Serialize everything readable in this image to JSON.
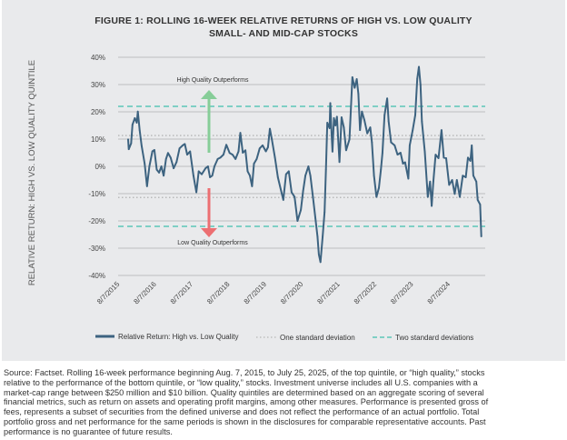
{
  "chart_data": {
    "type": "line",
    "title": "FIGURE 1: ROLLING 16-WEEK RELATIVE RETURNS OF HIGH VS. LOW QUALITY SMALL- AND MID-CAP STOCKS",
    "title_lines": [
      "FIGURE 1: ROLLING 16-WEEK RELATIVE RETURNS OF HIGH VS. LOW QUALITY",
      "SMALL- AND MID-CAP STOCKS"
    ],
    "xlabel": "",
    "ylabel": "RELATIVE RETURN: HIGH VS. LOW QUALITY QUINTILE",
    "ylim": [
      -40,
      40
    ],
    "yticks": [
      40,
      30,
      20,
      10,
      0,
      -10,
      -20,
      -30,
      -40
    ],
    "ytick_labels": [
      "40%",
      "30%",
      "20%",
      "10%",
      "0%",
      "-10%",
      "-20%",
      "-30%",
      "-40%"
    ],
    "xtick_labels": [
      "8/7/2015",
      "8/7/2016",
      "8/7/2017",
      "8/7/2018",
      "8/7/2019",
      "8/7/2020",
      "8/7/2021",
      "8/7/2022",
      "8/7/2023",
      "8/7/2024"
    ],
    "grid": "horizontal",
    "legend_position": "bottom",
    "annotations": {
      "up": "High Quality Outperforms",
      "down": "Low Quality Outperforms"
    },
    "reference_lines": [
      {
        "name": "One standard deviation",
        "values": [
          11.3,
          -11.4
        ],
        "style": "dotted",
        "color": "#a9a9a9"
      },
      {
        "name": "Two standard deviations",
        "values": [
          22,
          -22
        ],
        "style": "dashed",
        "color": "#5cc6b8"
      }
    ],
    "series": [
      {
        "name": "Relative Return: High vs. Low Quality",
        "color": "#3d6380",
        "points": [
          [
            "2015-08-07",
            9.9
          ],
          [
            "2015-08-14",
            6.3
          ],
          [
            "2015-09-07",
            8.4
          ],
          [
            "2015-09-21",
            15.3
          ],
          [
            "2015-10-15",
            17.7
          ],
          [
            "2015-11-04",
            16
          ],
          [
            "2015-11-15",
            20.1
          ],
          [
            "2015-12-04",
            13.3
          ],
          [
            "2015-12-24",
            7.7
          ],
          [
            "2016-01-24",
            1.0
          ],
          [
            "2016-02-18",
            -7.3
          ],
          [
            "2016-03-13",
            0
          ],
          [
            "2016-04-13",
            5.5
          ],
          [
            "2016-05-04",
            6
          ],
          [
            "2016-05-28",
            -1.2
          ],
          [
            "2016-06-21",
            -2.3
          ],
          [
            "2016-07-15",
            0
          ],
          [
            "2016-08-07",
            -3.4
          ],
          [
            "2016-09-01",
            2.7
          ],
          [
            "2016-09-21",
            4.9
          ],
          [
            "2016-10-18",
            3.2
          ],
          [
            "2016-11-18",
            -0.7
          ],
          [
            "2016-12-18",
            1.6
          ],
          [
            "2017-01-18",
            6.6
          ],
          [
            "2017-02-20",
            7.7
          ],
          [
            "2017-03-13",
            8.2
          ],
          [
            "2017-04-07",
            4.3
          ],
          [
            "2017-05-07",
            5.5
          ],
          [
            "2017-06-10",
            -3.4
          ],
          [
            "2017-07-10",
            -9.5
          ],
          [
            "2017-08-04",
            -1.8
          ],
          [
            "2017-09-04",
            -2.9
          ],
          [
            "2017-10-13",
            -0.7
          ],
          [
            "2017-11-07",
            0
          ],
          [
            "2017-11-28",
            -4
          ],
          [
            "2017-12-21",
            -3.4
          ],
          [
            "2018-01-13",
            0
          ],
          [
            "2018-02-15",
            2.7
          ],
          [
            "2018-03-15",
            3.2
          ],
          [
            "2018-04-15",
            4.3
          ],
          [
            "2018-05-15",
            7.9
          ],
          [
            "2018-06-18",
            4.9
          ],
          [
            "2018-07-18",
            4.3
          ],
          [
            "2018-08-18",
            2.7
          ],
          [
            "2018-09-18",
            5.5
          ],
          [
            "2018-10-07",
            12.3
          ],
          [
            "2018-11-01",
            5
          ],
          [
            "2018-11-28",
            5.9
          ],
          [
            "2018-12-21",
            -1.8
          ],
          [
            "2019-01-13",
            -3.4
          ],
          [
            "2019-02-04",
            -7.3
          ],
          [
            "2019-02-24",
            1.0
          ],
          [
            "2019-03-24",
            2.7
          ],
          [
            "2019-04-24",
            6.6
          ],
          [
            "2019-05-24",
            7.7
          ],
          [
            "2019-06-27",
            5.5
          ],
          [
            "2019-07-18",
            7
          ],
          [
            "2019-08-07",
            13.8
          ],
          [
            "2019-08-28",
            9.9
          ],
          [
            "2019-09-28",
            3.2
          ],
          [
            "2019-10-28",
            -4.0
          ],
          [
            "2019-12-01",
            -9.0
          ],
          [
            "2019-12-24",
            -12.3
          ],
          [
            "2020-01-21",
            -2.9
          ],
          [
            "2020-02-18",
            -1.8
          ],
          [
            "2020-03-18",
            -9.5
          ],
          [
            "2020-04-18",
            -11.2
          ],
          [
            "2020-05-18",
            -20
          ],
          [
            "2020-06-21",
            -16
          ],
          [
            "2020-07-15",
            -9.0
          ],
          [
            "2020-08-07",
            -3.4
          ],
          [
            "2020-09-07",
            0
          ],
          [
            "2020-09-28",
            -3.4
          ],
          [
            "2020-10-24",
            -11.2
          ],
          [
            "2020-11-18",
            -19
          ],
          [
            "2020-12-10",
            -25.7
          ],
          [
            "2020-12-24",
            -32.3
          ],
          [
            "2021-01-10",
            -35.1
          ],
          [
            "2021-02-01",
            -25.7
          ],
          [
            "2021-02-21",
            -16.7
          ],
          [
            "2021-03-07",
            -1.2
          ],
          [
            "2021-03-21",
            16
          ],
          [
            "2021-04-13",
            14
          ],
          [
            "2021-04-21",
            23.2
          ],
          [
            "2021-05-04",
            12.1
          ],
          [
            "2021-05-13",
            5.4
          ],
          [
            "2021-05-28",
            17.7
          ],
          [
            "2021-06-13",
            15
          ],
          [
            "2021-06-28",
            18.2
          ],
          [
            "2021-07-24",
            1.6
          ],
          [
            "2021-08-15",
            18
          ],
          [
            "2021-09-07",
            14.3
          ],
          [
            "2021-10-01",
            5.9
          ],
          [
            "2021-11-04",
            9.9
          ],
          [
            "2021-12-04",
            32.7
          ],
          [
            "2021-12-28",
            28.8
          ],
          [
            "2022-01-18",
            32
          ],
          [
            "2022-02-04",
            26.6
          ],
          [
            "2022-02-21",
            13.3
          ],
          [
            "2022-03-13",
            20.1
          ],
          [
            "2022-04-07",
            17
          ],
          [
            "2022-05-07",
            12.1
          ],
          [
            "2022-06-07",
            14.3
          ],
          [
            "2022-06-24",
            8.8
          ],
          [
            "2022-07-15",
            -3.4
          ],
          [
            "2022-08-10",
            -11.2
          ],
          [
            "2022-09-04",
            -7.9
          ],
          [
            "2022-09-24",
            -1.2
          ],
          [
            "2022-10-10",
            4.9
          ],
          [
            "2022-11-01",
            18.8
          ],
          [
            "2022-11-28",
            24.9
          ],
          [
            "2022-12-13",
            16.5
          ],
          [
            "2023-01-07",
            8.8
          ],
          [
            "2023-02-13",
            7.7
          ],
          [
            "2023-03-15",
            4.3
          ],
          [
            "2023-04-15",
            5
          ],
          [
            "2023-05-10",
            1.0
          ],
          [
            "2023-06-01",
            1.5
          ],
          [
            "2023-07-04",
            -4.5
          ],
          [
            "2023-07-18",
            7.7
          ],
          [
            "2023-08-18",
            13.3
          ],
          [
            "2023-09-13",
            18.8
          ],
          [
            "2023-10-04",
            32.1
          ],
          [
            "2023-10-21",
            36.5
          ],
          [
            "2023-11-07",
            29.9
          ],
          [
            "2023-11-21",
            16.5
          ],
          [
            "2023-12-21",
            5.4
          ],
          [
            "2024-01-21",
            -11.2
          ],
          [
            "2024-02-13",
            -5.6
          ],
          [
            "2024-03-01",
            -14.5
          ],
          [
            "2024-03-18",
            -5.6
          ],
          [
            "2024-04-10",
            4.3
          ],
          [
            "2024-05-10",
            3
          ],
          [
            "2024-06-10",
            13.3
          ],
          [
            "2024-07-04",
            3.2
          ],
          [
            "2024-07-28",
            3
          ],
          [
            "2024-08-28",
            -6.8
          ],
          [
            "2024-09-28",
            -5
          ],
          [
            "2024-10-24",
            -10.1
          ],
          [
            "2024-11-15",
            -5
          ],
          [
            "2024-12-15",
            -11.2
          ],
          [
            "2025-01-15",
            -3.4
          ],
          [
            "2025-02-15",
            -4
          ],
          [
            "2025-03-10",
            3.2
          ],
          [
            "2025-04-04",
            2
          ],
          [
            "2025-04-18",
            7.7
          ],
          [
            "2025-05-04",
            -3.4
          ],
          [
            "2025-06-04",
            -5.6
          ],
          [
            "2025-06-18",
            -12.3
          ],
          [
            "2025-07-13",
            -14
          ],
          [
            "2025-07-25",
            -25.7
          ]
        ]
      }
    ],
    "legend": [
      "Relative Return: High vs. Low Quality",
      "One standard deviation",
      "Two standard deviations"
    ],
    "arrow_colors": {
      "up": "#86cd98",
      "down": "#ec6f72"
    }
  },
  "footnote": [
    "Source: Factset. Rolling 16-week performance beginning Aug. 7, 2015, to July 25, 2025, of the top quintile, or “high quality,” stocks",
    "relative to the performance of the bottom quintile, or “low quality,” stocks. Investment universe includes all U.S. companies with a",
    "market-cap range between $250 million and $10 billion. Quality quintiles are determined based on an aggregate scoring of several",
    "financial metrics, such as return on assets and operating profit margins, among other measures. Performance is presented gross of",
    "fees, represents a subset of securities from the defined universe and does not reflect the performance of an actual portfolio. Total",
    "portfolio gross and net performance for the same periods is shown in the disclosures for comparable representative accounts. Past",
    "performance is no guarantee of future results."
  ]
}
